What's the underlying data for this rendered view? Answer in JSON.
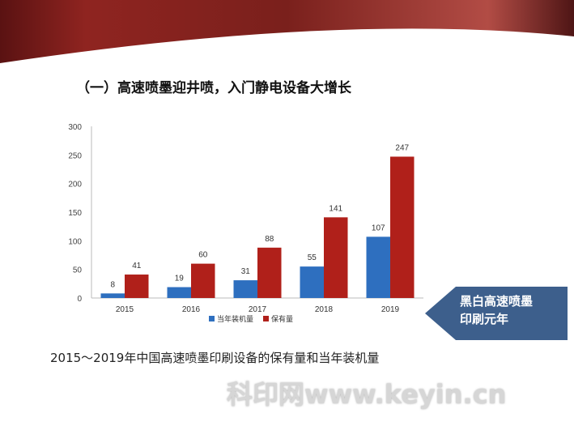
{
  "header": {
    "title": "（一）高速喷墨迎井喷，入门静电设备大增长"
  },
  "chart_data": {
    "type": "bar",
    "categories": [
      "2015",
      "2016",
      "2017",
      "2018",
      "2019"
    ],
    "series": [
      {
        "name": "当年装机量",
        "values": [
          8,
          19,
          31,
          55,
          107
        ],
        "color": "#2e6fbf"
      },
      {
        "name": "保有量",
        "values": [
          41,
          60,
          88,
          141,
          247
        ],
        "color": "#b0201a"
      }
    ],
    "ylim": [
      0,
      300
    ],
    "yticks": [
      0,
      50,
      100,
      150,
      200,
      250,
      300
    ],
    "grid": false,
    "legend": "bottom",
    "data_labels": true
  },
  "caption": "2015～2019年中国高速喷墨印刷设备的保有量和当年装机量",
  "callout": {
    "line1": "黑白高速喷墨",
    "line2": "印刷元年",
    "color": "#3d5f8c"
  },
  "watermark": "科印网www.keyin.cn"
}
